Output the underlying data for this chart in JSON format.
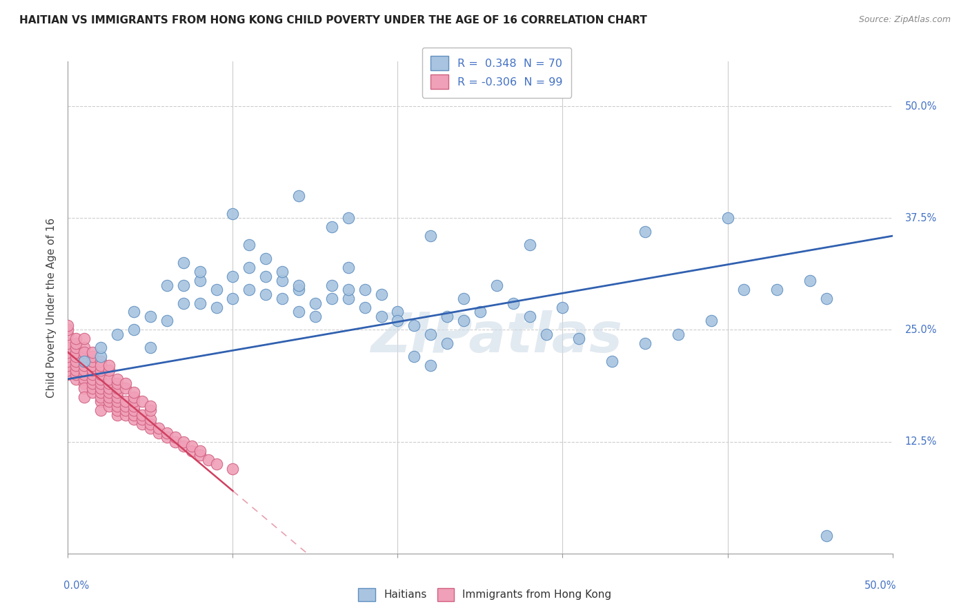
{
  "title": "HAITIAN VS IMMIGRANTS FROM HONG KONG CHILD POVERTY UNDER THE AGE OF 16 CORRELATION CHART",
  "source": "Source: ZipAtlas.com",
  "ylabel": "Child Poverty Under the Age of 16",
  "ytick_labels": [
    "12.5%",
    "25.0%",
    "37.5%",
    "50.0%"
  ],
  "ytick_vals": [
    0.125,
    0.25,
    0.375,
    0.5
  ],
  "watermark": "ZIPatlas",
  "legend_label1": "Haitians",
  "legend_label2": "Immigrants from Hong Kong",
  "blue_color": "#a8c4e0",
  "pink_color": "#f0a0b8",
  "blue_edge_color": "#6090c0",
  "pink_edge_color": "#d06080",
  "blue_line_color": "#3060b0",
  "pink_line_color": "#d04060",
  "blue_scatter": [
    [
      0.01,
      0.215
    ],
    [
      0.02,
      0.22
    ],
    [
      0.02,
      0.23
    ],
    [
      0.03,
      0.245
    ],
    [
      0.04,
      0.25
    ],
    [
      0.04,
      0.27
    ],
    [
      0.05,
      0.23
    ],
    [
      0.05,
      0.265
    ],
    [
      0.06,
      0.26
    ],
    [
      0.06,
      0.3
    ],
    [
      0.07,
      0.28
    ],
    [
      0.07,
      0.3
    ],
    [
      0.07,
      0.325
    ],
    [
      0.08,
      0.28
    ],
    [
      0.08,
      0.305
    ],
    [
      0.08,
      0.315
    ],
    [
      0.09,
      0.275
    ],
    [
      0.09,
      0.295
    ],
    [
      0.1,
      0.285
    ],
    [
      0.1,
      0.31
    ],
    [
      0.11,
      0.295
    ],
    [
      0.11,
      0.32
    ],
    [
      0.11,
      0.345
    ],
    [
      0.12,
      0.29
    ],
    [
      0.12,
      0.31
    ],
    [
      0.12,
      0.33
    ],
    [
      0.13,
      0.285
    ],
    [
      0.13,
      0.305
    ],
    [
      0.13,
      0.315
    ],
    [
      0.14,
      0.295
    ],
    [
      0.14,
      0.27
    ],
    [
      0.14,
      0.3
    ],
    [
      0.15,
      0.28
    ],
    [
      0.15,
      0.265
    ],
    [
      0.16,
      0.285
    ],
    [
      0.16,
      0.3
    ],
    [
      0.17,
      0.285
    ],
    [
      0.17,
      0.295
    ],
    [
      0.17,
      0.32
    ],
    [
      0.18,
      0.275
    ],
    [
      0.18,
      0.295
    ],
    [
      0.19,
      0.265
    ],
    [
      0.19,
      0.29
    ],
    [
      0.2,
      0.27
    ],
    [
      0.2,
      0.26
    ],
    [
      0.21,
      0.22
    ],
    [
      0.21,
      0.255
    ],
    [
      0.22,
      0.21
    ],
    [
      0.22,
      0.245
    ],
    [
      0.23,
      0.235
    ],
    [
      0.23,
      0.265
    ],
    [
      0.24,
      0.26
    ],
    [
      0.24,
      0.285
    ],
    [
      0.25,
      0.27
    ],
    [
      0.26,
      0.3
    ],
    [
      0.27,
      0.28
    ],
    [
      0.28,
      0.265
    ],
    [
      0.29,
      0.245
    ],
    [
      0.3,
      0.275
    ],
    [
      0.31,
      0.24
    ],
    [
      0.33,
      0.215
    ],
    [
      0.35,
      0.235
    ],
    [
      0.37,
      0.245
    ],
    [
      0.39,
      0.26
    ],
    [
      0.41,
      0.295
    ],
    [
      0.43,
      0.295
    ],
    [
      0.45,
      0.305
    ],
    [
      0.46,
      0.285
    ],
    [
      0.1,
      0.38
    ],
    [
      0.14,
      0.4
    ],
    [
      0.16,
      0.365
    ],
    [
      0.17,
      0.375
    ],
    [
      0.22,
      0.355
    ],
    [
      0.28,
      0.345
    ],
    [
      0.35,
      0.36
    ],
    [
      0.4,
      0.375
    ],
    [
      0.46,
      0.02
    ]
  ],
  "pink_scatter": [
    [
      0.0,
      0.2
    ],
    [
      0.0,
      0.205
    ],
    [
      0.0,
      0.21
    ],
    [
      0.0,
      0.215
    ],
    [
      0.0,
      0.22
    ],
    [
      0.0,
      0.225
    ],
    [
      0.0,
      0.23
    ],
    [
      0.0,
      0.235
    ],
    [
      0.005,
      0.195
    ],
    [
      0.005,
      0.2
    ],
    [
      0.005,
      0.205
    ],
    [
      0.005,
      0.21
    ],
    [
      0.005,
      0.215
    ],
    [
      0.005,
      0.22
    ],
    [
      0.005,
      0.225
    ],
    [
      0.005,
      0.23
    ],
    [
      0.01,
      0.19
    ],
    [
      0.01,
      0.195
    ],
    [
      0.01,
      0.2
    ],
    [
      0.01,
      0.205
    ],
    [
      0.01,
      0.21
    ],
    [
      0.01,
      0.215
    ],
    [
      0.01,
      0.22
    ],
    [
      0.01,
      0.23
    ],
    [
      0.01,
      0.185
    ],
    [
      0.01,
      0.175
    ],
    [
      0.015,
      0.18
    ],
    [
      0.015,
      0.185
    ],
    [
      0.015,
      0.19
    ],
    [
      0.015,
      0.195
    ],
    [
      0.015,
      0.2
    ],
    [
      0.015,
      0.205
    ],
    [
      0.015,
      0.21
    ],
    [
      0.02,
      0.17
    ],
    [
      0.02,
      0.175
    ],
    [
      0.02,
      0.18
    ],
    [
      0.02,
      0.185
    ],
    [
      0.02,
      0.19
    ],
    [
      0.02,
      0.195
    ],
    [
      0.02,
      0.2
    ],
    [
      0.02,
      0.205
    ],
    [
      0.02,
      0.16
    ],
    [
      0.025,
      0.165
    ],
    [
      0.025,
      0.17
    ],
    [
      0.025,
      0.175
    ],
    [
      0.025,
      0.18
    ],
    [
      0.025,
      0.185
    ],
    [
      0.025,
      0.19
    ],
    [
      0.025,
      0.195
    ],
    [
      0.03,
      0.155
    ],
    [
      0.03,
      0.16
    ],
    [
      0.03,
      0.165
    ],
    [
      0.03,
      0.17
    ],
    [
      0.03,
      0.175
    ],
    [
      0.03,
      0.18
    ],
    [
      0.03,
      0.185
    ],
    [
      0.035,
      0.155
    ],
    [
      0.035,
      0.16
    ],
    [
      0.035,
      0.165
    ],
    [
      0.035,
      0.17
    ],
    [
      0.04,
      0.15
    ],
    [
      0.04,
      0.155
    ],
    [
      0.04,
      0.16
    ],
    [
      0.04,
      0.165
    ],
    [
      0.04,
      0.17
    ],
    [
      0.045,
      0.145
    ],
    [
      0.045,
      0.15
    ],
    [
      0.045,
      0.155
    ],
    [
      0.05,
      0.14
    ],
    [
      0.05,
      0.145
    ],
    [
      0.05,
      0.15
    ],
    [
      0.055,
      0.135
    ],
    [
      0.055,
      0.14
    ],
    [
      0.06,
      0.13
    ],
    [
      0.06,
      0.135
    ],
    [
      0.065,
      0.125
    ],
    [
      0.065,
      0.13
    ],
    [
      0.07,
      0.12
    ],
    [
      0.07,
      0.125
    ],
    [
      0.075,
      0.115
    ],
    [
      0.075,
      0.12
    ],
    [
      0.08,
      0.11
    ],
    [
      0.08,
      0.115
    ],
    [
      0.085,
      0.105
    ],
    [
      0.09,
      0.1
    ],
    [
      0.1,
      0.095
    ],
    [
      0.0,
      0.245
    ],
    [
      0.0,
      0.25
    ],
    [
      0.0,
      0.255
    ],
    [
      0.005,
      0.235
    ],
    [
      0.005,
      0.24
    ],
    [
      0.01,
      0.225
    ],
    [
      0.01,
      0.24
    ],
    [
      0.015,
      0.215
    ],
    [
      0.015,
      0.22
    ],
    [
      0.015,
      0.225
    ],
    [
      0.02,
      0.215
    ],
    [
      0.02,
      0.21
    ],
    [
      0.025,
      0.205
    ],
    [
      0.025,
      0.21
    ],
    [
      0.03,
      0.19
    ],
    [
      0.03,
      0.195
    ],
    [
      0.035,
      0.185
    ],
    [
      0.035,
      0.19
    ],
    [
      0.04,
      0.175
    ],
    [
      0.04,
      0.18
    ],
    [
      0.045,
      0.17
    ],
    [
      0.05,
      0.16
    ],
    [
      0.05,
      0.165
    ]
  ],
  "xlim": [
    0.0,
    0.5
  ],
  "ylim": [
    0.0,
    0.55
  ],
  "blue_trend": [
    0.0,
    0.5,
    0.195,
    0.355
  ],
  "pink_trend_solid": [
    0.0,
    0.1,
    0.225,
    0.07
  ],
  "pink_trend_dash": [
    0.1,
    0.5,
    0.07,
    -0.28
  ]
}
